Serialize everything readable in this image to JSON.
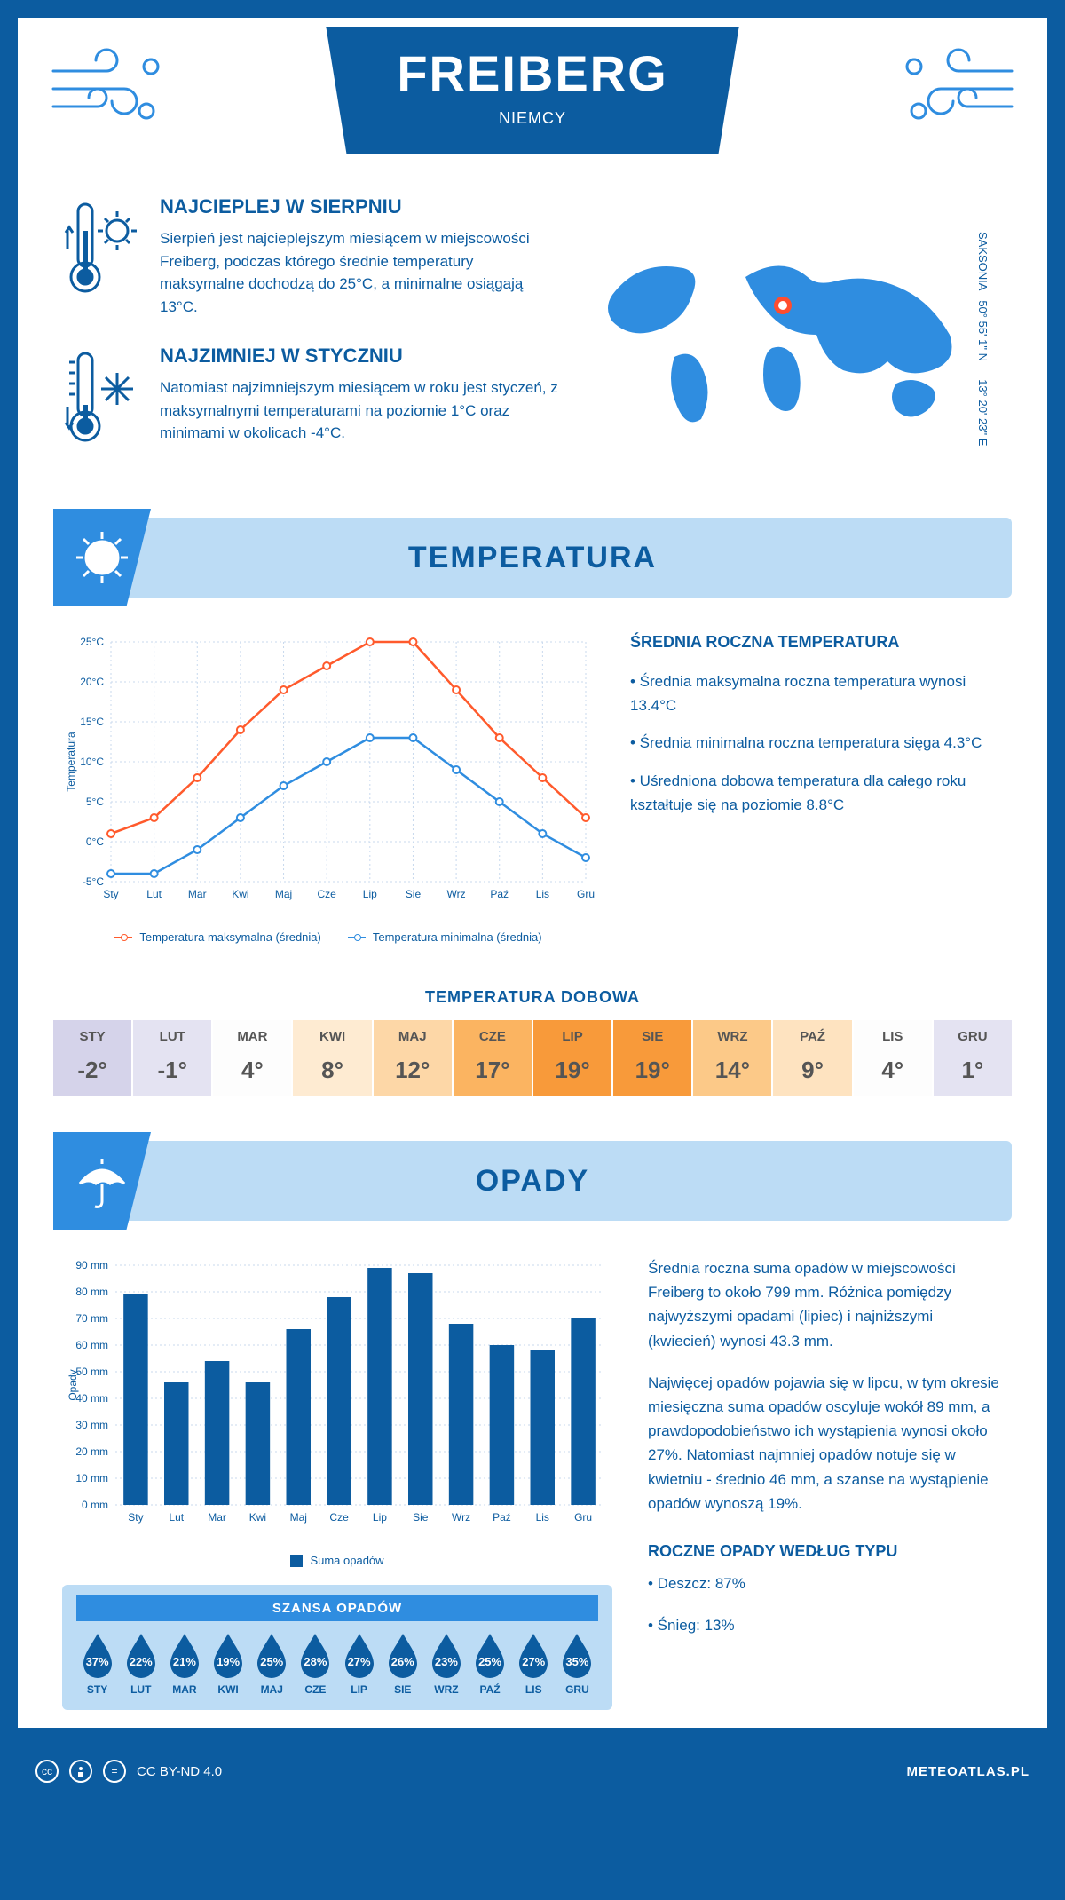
{
  "header": {
    "city": "FREIBERG",
    "country": "NIEMCY",
    "coords": "50° 55' 1\" N — 13° 20' 23\" E",
    "region": "SAKSONIA"
  },
  "intro": {
    "warm": {
      "title": "NAJCIEPLEJ W SIERPNIU",
      "text": "Sierpień jest najcieplejszym miesiącem w miejscowości Freiberg, podczas którego średnie temperatury maksymalne dochodzą do 25°C, a minimalne osiągają 13°C."
    },
    "cold": {
      "title": "NAJZIMNIEJ W STYCZNIU",
      "text": "Natomiast najzimniejszym miesiącem w roku jest styczeń, z maksymalnymi temperaturami na poziomie 1°C oraz minimami w okolicach -4°C."
    }
  },
  "temperature": {
    "section_title": "TEMPERATURA",
    "chart": {
      "type": "line",
      "months": [
        "Sty",
        "Lut",
        "Mar",
        "Kwi",
        "Maj",
        "Cze",
        "Lip",
        "Sie",
        "Wrz",
        "Paź",
        "Lis",
        "Gru"
      ],
      "max_series": [
        1,
        3,
        8,
        14,
        19,
        22,
        25,
        25,
        19,
        13,
        8,
        3
      ],
      "min_series": [
        -4,
        -4,
        -1,
        3,
        7,
        10,
        13,
        13,
        9,
        5,
        1,
        -2
      ],
      "max_color": "#ff5a2c",
      "min_color": "#2f8de0",
      "ylim": [
        -5,
        25
      ],
      "ytick_step": 5,
      "ysuffix": "°C",
      "yaxis_label": "Temperatura",
      "grid_color": "#c8d9ee",
      "background": "#ffffff",
      "legend_max": "Temperatura maksymalna (średnia)",
      "legend_min": "Temperatura minimalna (średnia)"
    },
    "aside": {
      "title": "ŚREDNIA ROCZNA TEMPERATURA",
      "b1": "• Średnia maksymalna roczna temperatura wynosi 13.4°C",
      "b2": "• Średnia minimalna roczna temperatura sięga 4.3°C",
      "b3": "• Uśredniona dobowa temperatura dla całego roku kształtuje się na poziomie 8.8°C"
    },
    "daily_title": "TEMPERATURA DOBOWA",
    "daily": [
      {
        "m": "STY",
        "v": "-2°",
        "bg": "#d5d3ea"
      },
      {
        "m": "LUT",
        "v": "-1°",
        "bg": "#e4e3f2"
      },
      {
        "m": "MAR",
        "v": "4°",
        "bg": "#fdfdfd"
      },
      {
        "m": "KWI",
        "v": "8°",
        "bg": "#feebd2"
      },
      {
        "m": "MAJ",
        "v": "12°",
        "bg": "#fdd7a7"
      },
      {
        "m": "CZE",
        "v": "17°",
        "bg": "#fbb461"
      },
      {
        "m": "LIP",
        "v": "19°",
        "bg": "#f89a3a"
      },
      {
        "m": "SIE",
        "v": "19°",
        "bg": "#f89a3a"
      },
      {
        "m": "WRZ",
        "v": "14°",
        "bg": "#fcc988"
      },
      {
        "m": "PAŹ",
        "v": "9°",
        "bg": "#fee3c0"
      },
      {
        "m": "LIS",
        "v": "4°",
        "bg": "#fdfdfd"
      },
      {
        "m": "GRU",
        "v": "1°",
        "bg": "#e4e3f2"
      }
    ]
  },
  "precip": {
    "section_title": "OPADY",
    "chart": {
      "type": "bar",
      "months": [
        "Sty",
        "Lut",
        "Mar",
        "Kwi",
        "Maj",
        "Cze",
        "Lip",
        "Sie",
        "Wrz",
        "Paź",
        "Lis",
        "Gru"
      ],
      "values": [
        79,
        46,
        54,
        46,
        66,
        78,
        89,
        87,
        68,
        60,
        58,
        70
      ],
      "bar_color": "#0c5ca0",
      "ylim": [
        0,
        90
      ],
      "ytick_step": 10,
      "ysuffix": " mm",
      "yaxis_label": "Opady",
      "grid_color": "#c8d9ee",
      "legend": "Suma opadów"
    },
    "aside": {
      "p1": "Średnia roczna suma opadów w miejscowości Freiberg to około 799 mm. Różnica pomiędzy najwyższymi opadami (lipiec) i najniższymi (kwiecień) wynosi 43.3 mm.",
      "p2": "Najwięcej opadów pojawia się w lipcu, w tym okresie miesięczna suma opadów oscyluje wokół 89 mm, a prawdopodobieństwo ich wystąpienia wynosi około 27%. Natomiast najmniej opadów notuje się w kwietniu - średnio 46 mm, a szanse na wystąpienie opadów wynoszą 19%.",
      "type_title": "ROCZNE OPADY WEDŁUG TYPU",
      "rain": "• Deszcz: 87%",
      "snow": "• Śnieg: 13%"
    },
    "chance_title": "SZANSA OPADÓW",
    "chance": [
      {
        "m": "STY",
        "v": "37%"
      },
      {
        "m": "LUT",
        "v": "22%"
      },
      {
        "m": "MAR",
        "v": "21%"
      },
      {
        "m": "KWI",
        "v": "19%"
      },
      {
        "m": "MAJ",
        "v": "25%"
      },
      {
        "m": "CZE",
        "v": "28%"
      },
      {
        "m": "LIP",
        "v": "27%"
      },
      {
        "m": "SIE",
        "v": "26%"
      },
      {
        "m": "WRZ",
        "v": "23%"
      },
      {
        "m": "PAŹ",
        "v": "25%"
      },
      {
        "m": "LIS",
        "v": "27%"
      },
      {
        "m": "GRU",
        "v": "35%"
      }
    ],
    "drop_color": "#0c5ca0"
  },
  "footer": {
    "license": "CC BY-ND 4.0",
    "site": "METEOATLAS.PL"
  }
}
